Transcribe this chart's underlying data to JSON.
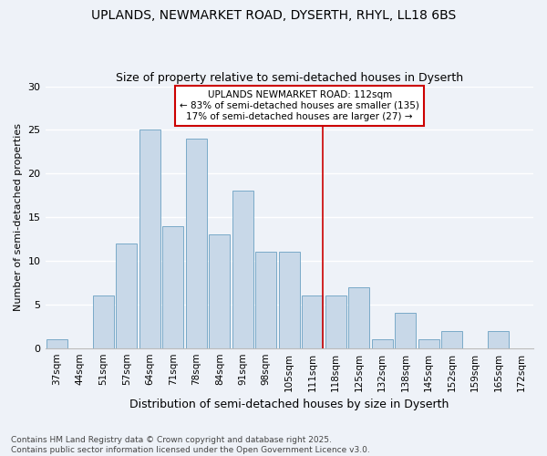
{
  "title1": "UPLANDS, NEWMARKET ROAD, DYSERTH, RHYL, LL18 6BS",
  "title2": "Size of property relative to semi-detached houses in Dyserth",
  "xlabel": "Distribution of semi-detached houses by size in Dyserth",
  "ylabel": "Number of semi-detached properties",
  "categories": [
    "37sqm",
    "44sqm",
    "51sqm",
    "57sqm",
    "64sqm",
    "71sqm",
    "78sqm",
    "84sqm",
    "91sqm",
    "98sqm",
    "105sqm",
    "111sqm",
    "118sqm",
    "125sqm",
    "132sqm",
    "138sqm",
    "145sqm",
    "152sqm",
    "159sqm",
    "165sqm",
    "172sqm"
  ],
  "values": [
    1,
    0,
    6,
    12,
    25,
    14,
    24,
    13,
    18,
    11,
    11,
    6,
    6,
    7,
    1,
    4,
    1,
    2,
    0,
    2,
    0
  ],
  "bar_color": "#c8d8e8",
  "bar_edge_color": "#7aaac8",
  "vline_x_index": 11,
  "vline_color": "#cc0000",
  "annotation_text": "UPLANDS NEWMARKET ROAD: 112sqm\n← 83% of semi-detached houses are smaller (135)\n17% of semi-detached houses are larger (27) →",
  "annotation_box_color": "#cc0000",
  "annotation_fill": "#ffffff",
  "footer_text": "Contains HM Land Registry data © Crown copyright and database right 2025.\nContains public sector information licensed under the Open Government Licence v3.0.",
  "ylim": [
    0,
    30
  ],
  "yticks": [
    0,
    5,
    10,
    15,
    20,
    25,
    30
  ],
  "bg_color": "#eef2f8",
  "grid_color": "#ffffff",
  "title1_fontsize": 10,
  "title2_fontsize": 9,
  "footer_fontsize": 6.5,
  "ylabel_fontsize": 8,
  "xlabel_fontsize": 9
}
